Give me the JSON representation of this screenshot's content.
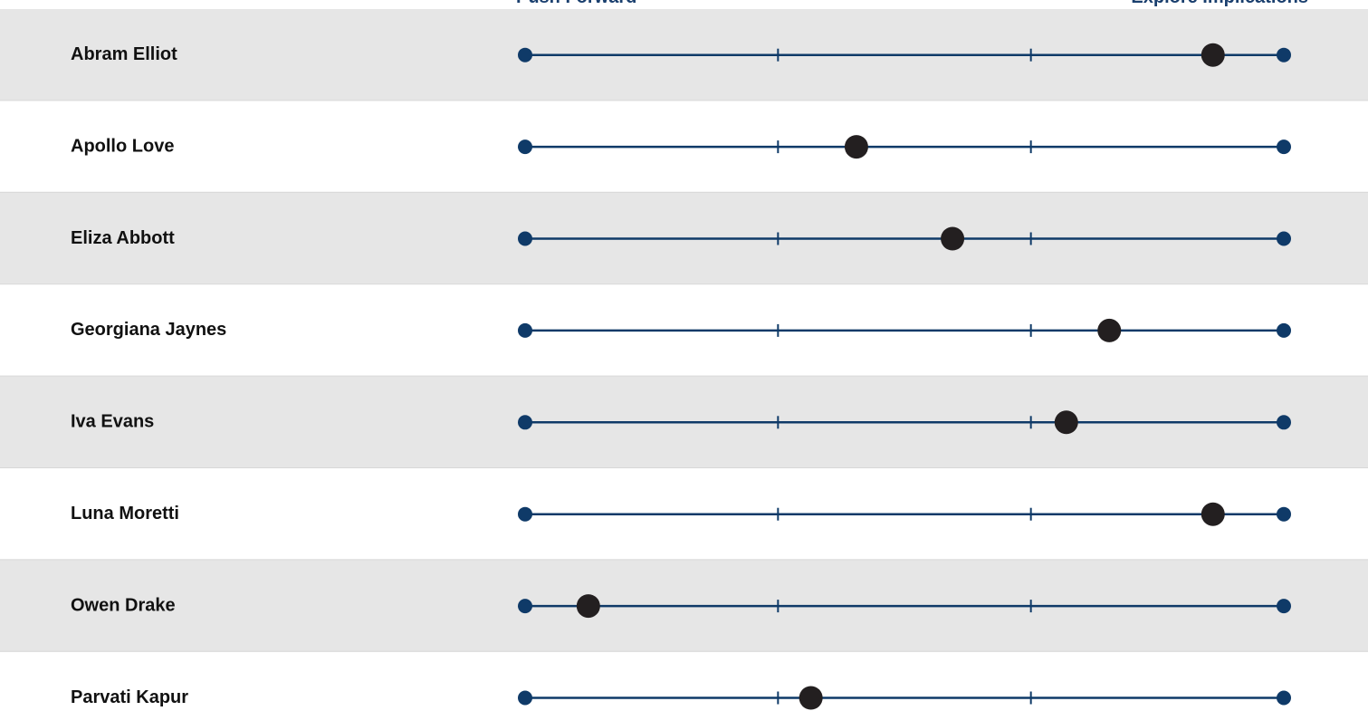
{
  "chart_data": {
    "type": "dot",
    "x_label_left": "Push Forward",
    "x_label_right": "Explore Implications",
    "categories": [
      "Abram Elliot",
      "Apollo Love",
      "Eliza Abbott",
      "Georgiana Jaynes",
      "Iva Evans",
      "Luna Moretti",
      "Owen Drake",
      "Parvati Kapur"
    ],
    "values": [
      2.72,
      1.31,
      1.69,
      2.31,
      2.14,
      2.72,
      0.25,
      1.13
    ],
    "xlim": [
      0,
      3
    ],
    "xticks": [
      0,
      1,
      2,
      3
    ],
    "color": "#231f20",
    "line_color": "#0f3a68"
  }
}
